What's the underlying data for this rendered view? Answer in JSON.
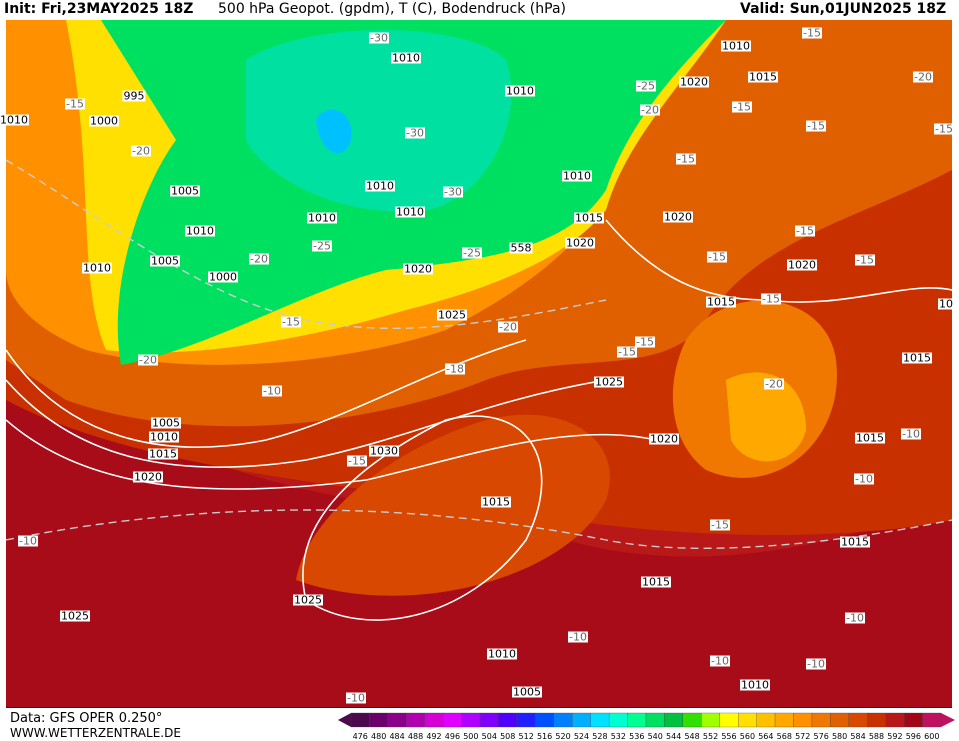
{
  "header": {
    "init": "Init: Fri,23MAY2025 18Z",
    "title": "500 hPa Geopot. (gpdm), T (C), Bodendruck (hPa)",
    "valid": "Valid: Sun,01JUN2025 18Z"
  },
  "footer": {
    "data": "Data: GFS OPER 0.250°",
    "site": "WWW.WETTERZENTRALE.DE"
  },
  "colorbar": {
    "values": [
      476,
      480,
      484,
      488,
      492,
      496,
      500,
      504,
      508,
      512,
      516,
      520,
      524,
      528,
      532,
      536,
      540,
      544,
      548,
      552,
      556,
      560,
      564,
      568,
      572,
      576,
      580,
      584,
      588,
      592,
      596,
      600
    ]
  },
  "map": {
    "pressure_labels": [
      995,
      1000,
      1010,
      1005,
      1010,
      1010,
      1005,
      1000,
      1010,
      1010,
      1010,
      1010,
      1010,
      1010,
      1020,
      1015,
      1010,
      1015,
      1020,
      1020,
      1020,
      1020,
      1015,
      1015,
      1025,
      1025,
      1020,
      1015,
      1005,
      1010,
      1015,
      1020,
      1030,
      1015,
      1015,
      1015,
      1025,
      1025,
      1010,
      1005,
      1010,
      10
    ],
    "geopotential_labels": [
      558
    ],
    "temperature_labels": [
      -15,
      -20,
      -30,
      -30,
      -30,
      -25,
      -20,
      -25,
      -15,
      -20,
      -20,
      -18,
      -10,
      -15,
      -10,
      -10,
      -15,
      -20,
      -25,
      -20,
      -15,
      -15,
      -15,
      -15,
      -15,
      -15,
      -15,
      -15,
      -15,
      -15,
      -20,
      -10,
      -10,
      -15,
      -10,
      -10,
      -10,
      -10
    ]
  }
}
